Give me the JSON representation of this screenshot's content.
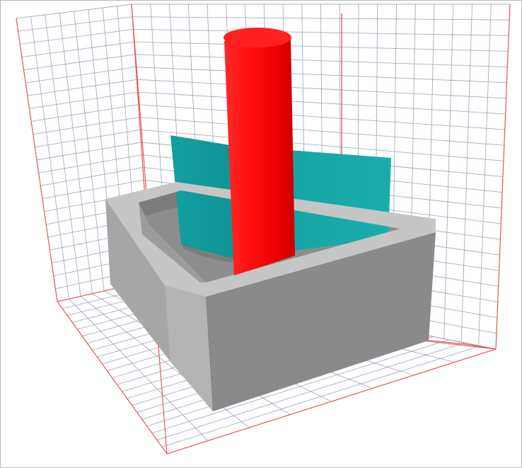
{
  "scene": {
    "type": "3d-render",
    "view": "isometric",
    "objects": [
      {
        "name": "bounding-grid-box",
        "shape": "wireframe-grid-cube",
        "color": "#7d83a8",
        "edge_color": "#e85a5a"
      },
      {
        "name": "hollow-square-container",
        "shape": "hollow-square-box",
        "color": "#8c8c8c"
      },
      {
        "name": "teal-plane",
        "shape": "bent-plane",
        "color": "#17a3a5"
      },
      {
        "name": "red-cylinder",
        "shape": "cylinder",
        "color": "#ff1a1a"
      }
    ],
    "colors": {
      "grid_lines": "#8a90b0",
      "grid_edges": "#e85a5a",
      "box_top": "#c9c9c9",
      "box_front": "#8a8a8a",
      "box_side": "#a9a9a9",
      "box_inner": "#b5b5b5",
      "plane_left": "#129a9c",
      "plane_right": "#1aabab",
      "cylinder_light": "#ff3333",
      "cylinder_dark": "#d40000",
      "cylinder_top": "#ff2222"
    }
  }
}
